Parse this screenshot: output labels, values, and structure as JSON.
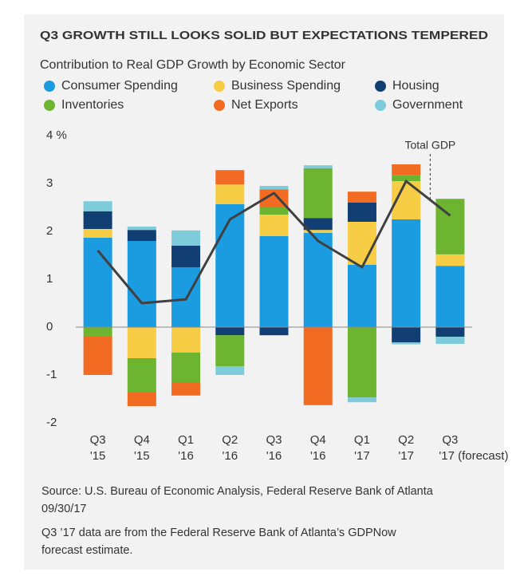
{
  "chart_data": {
    "type": "bar",
    "stacked": true,
    "title": "Q3 GROWTH STILL LOOKS SOLID BUT EXPECTATIONS TEMPERED",
    "subtitle": "Contribution to Real GDP Growth by Economic Sector",
    "categories": [
      [
        "Q3",
        "'15"
      ],
      [
        "Q4",
        "'15"
      ],
      [
        "Q1",
        "'16"
      ],
      [
        "Q2",
        "'16"
      ],
      [
        "Q3",
        "'16"
      ],
      [
        "Q4",
        "'16"
      ],
      [
        "Q1",
        "'17"
      ],
      [
        "Q2",
        "'17"
      ],
      [
        "Q3",
        "'17 (forecast)"
      ]
    ],
    "series": [
      {
        "name": "Consumer Spending",
        "color": "#1b9be0",
        "values": [
          1.87,
          1.8,
          1.25,
          2.57,
          1.9,
          1.97,
          1.3,
          2.25,
          1.28
        ]
      },
      {
        "name": "Business Spending",
        "color": "#f7cd46",
        "values": [
          0.18,
          -0.65,
          -0.53,
          0.41,
          0.45,
          0.06,
          0.9,
          0.8,
          0.24
        ]
      },
      {
        "name": "Housing",
        "color": "#123f73",
        "values": [
          0.37,
          0.23,
          0.45,
          -0.17,
          -0.17,
          0.25,
          0.4,
          -0.32,
          -0.2
        ]
      },
      {
        "name": "Inventories",
        "color": "#6db431",
        "values": [
          -0.2,
          -0.7,
          -0.62,
          -0.65,
          0.15,
          1.04,
          -1.47,
          0.13,
          1.16
        ]
      },
      {
        "name": "Net Exports",
        "color": "#f26b22",
        "values": [
          -0.8,
          -0.3,
          -0.28,
          0.3,
          0.38,
          -1.63,
          0.23,
          0.22,
          0
        ]
      },
      {
        "name": "Government",
        "color": "#7ecbdb",
        "values": [
          0.21,
          0.07,
          0.32,
          -0.18,
          0.07,
          0.06,
          -0.1,
          -0.04,
          -0.15
        ]
      }
    ],
    "line": {
      "name": "Total GDP",
      "color": "#404040",
      "values": [
        1.6,
        0.5,
        0.58,
        2.25,
        2.8,
        1.8,
        1.25,
        3.05,
        2.33
      ]
    },
    "ylim": [
      -2,
      4
    ],
    "yticks": [
      -2,
      -1,
      0,
      1,
      2,
      3,
      {
        "value": 4,
        "label": "4 %"
      }
    ],
    "source": [
      "Source: U.S. Bureau of Economic Analysis, Federal Reserve Bank of Atlanta",
      "09/30/17"
    ],
    "note": [
      "Q3 ’17 data are from the Federal Reserve Bank of Atlanta’s GDPNow",
      "forecast estimate."
    ]
  }
}
